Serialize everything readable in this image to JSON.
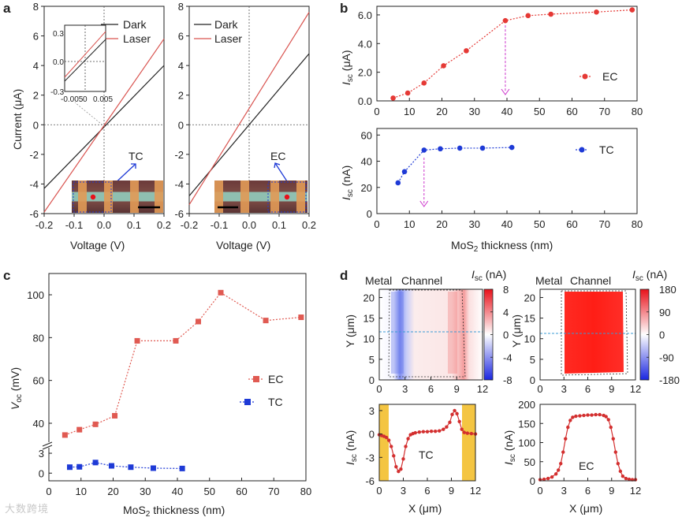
{
  "chart_data": [
    {
      "panel": "a",
      "type": "line",
      "xlim": [
        -0.2,
        0.2
      ],
      "ylim": [
        -6,
        8
      ],
      "xticks": [
        -0.2,
        -0.1,
        0.0,
        0.1,
        0.2
      ],
      "yticks": [
        -6,
        -4,
        -2,
        0,
        2,
        4,
        6,
        8
      ],
      "xlabel": "Voltage (V)",
      "ylabel": "Current (μA)",
      "series": [
        {
          "name": "Dark",
          "color": "#222222",
          "x": [
            -0.2,
            0.2
          ],
          "y": [
            -4.3,
            4.0
          ]
        },
        {
          "name": "Laser",
          "color": "#d9534f",
          "x": [
            -0.2,
            0.2
          ],
          "y": [
            -5.9,
            5.8
          ]
        }
      ],
      "annotation": "TC",
      "inset": {
        "xlim": [
          -0.005,
          0.005
        ],
        "ylim": [
          -0.3,
          0.3
        ],
        "xticks": [
          "-0.005",
          "0",
          "0.005"
        ],
        "yticks": [
          "0.3",
          "0.0",
          "-0.3"
        ]
      }
    },
    {
      "panel": "a-right",
      "type": "line",
      "xlim": [
        -0.2,
        0.2
      ],
      "ylim": [
        -6,
        8
      ],
      "xticks": [
        -0.2,
        -0.1,
        0.0,
        0.1,
        0.2
      ],
      "yticks": [
        -6,
        -4,
        -2,
        0,
        2,
        4,
        6,
        8
      ],
      "xlabel": "Voltage (V)",
      "series": [
        {
          "name": "Dark",
          "color": "#222222",
          "x": [
            -0.2,
            0.2
          ],
          "y": [
            -4.8,
            4.8
          ]
        },
        {
          "name": "Laser",
          "color": "#d9534f",
          "x": [
            -0.2,
            0.2
          ],
          "y": [
            -5.4,
            7.6
          ]
        }
      ],
      "annotation": "EC"
    },
    {
      "panel": "b-top",
      "type": "line",
      "xlim": [
        0,
        80
      ],
      "ylim": [
        0,
        6.6
      ],
      "yticks": [
        0.0,
        2.0,
        4.0,
        6.0
      ],
      "ylabel": "Isc (μA)",
      "series": [
        {
          "name": "EC",
          "color": "#e53935",
          "x": [
            5,
            9.5,
            14.5,
            20.5,
            27.5,
            39.5,
            46.5,
            53.5,
            67.5,
            78.5
          ],
          "y": [
            0.2,
            0.55,
            1.25,
            2.45,
            3.5,
            5.6,
            5.95,
            6.05,
            6.2,
            6.35
          ]
        }
      ],
      "marker_x": 39.5
    },
    {
      "panel": "b-bottom",
      "type": "line",
      "xlim": [
        0,
        80
      ],
      "ylim": [
        0,
        65
      ],
      "xticks": [
        0,
        10,
        20,
        30,
        40,
        50,
        60,
        70,
        80
      ],
      "yticks": [
        0,
        20,
        40,
        60
      ],
      "xlabel": "MoS2 thickness (nm)",
      "ylabel": "Isc (nA)",
      "series": [
        {
          "name": "TC",
          "color": "#1e3ad6",
          "x": [
            6.5,
            8.5,
            14.5,
            19.5,
            25.5,
            32.5,
            41.5
          ],
          "y": [
            23.5,
            32,
            48.5,
            49.5,
            50,
            50,
            50.5
          ]
        }
      ],
      "marker_x": 14.5
    },
    {
      "panel": "c",
      "type": "line",
      "xlim": [
        0,
        80
      ],
      "xticks": [
        0,
        10,
        20,
        30,
        40,
        50,
        60,
        70,
        80
      ],
      "yticks_upper": [
        40,
        60,
        80,
        100
      ],
      "yticks_lower": [
        0,
        3
      ],
      "ylim_upper": [
        33,
        107
      ],
      "ylim_lower": [
        -0.8,
        3.6
      ],
      "xlabel": "MoS2 thickness (nm)",
      "ylabel": "Voc (mV)",
      "series": [
        {
          "name": "EC",
          "color": "#e05a52",
          "x": [
            5,
            9.5,
            14.5,
            20.5,
            27.5,
            39.5,
            46.5,
            53.5,
            67.5,
            78.5
          ],
          "y": [
            34.5,
            37,
            39.5,
            43.5,
            78.5,
            78.5,
            87.5,
            101,
            88,
            89.5
          ]
        },
        {
          "name": "TC",
          "color": "#1e3ad6",
          "x": [
            6.5,
            9.5,
            14.5,
            19.5,
            25.5,
            32.5,
            41.5
          ],
          "y": [
            0.9,
            0.95,
            1.6,
            1.1,
            0.9,
            0.75,
            0.7
          ]
        }
      ]
    },
    {
      "panel": "d-map-left",
      "type": "heatmap",
      "xlim": [
        0,
        12
      ],
      "ylim": [
        0,
        22
      ],
      "xticks": [
        0,
        3,
        6,
        9,
        12
      ],
      "yticks": [
        0,
        5,
        10,
        15,
        20
      ],
      "ylabel": "Y (μm)",
      "colorbar": {
        "title": "Isc (nA)",
        "ticks": [
          8,
          4,
          0,
          -4,
          -8
        ],
        "min": -8,
        "max": 8
      }
    },
    {
      "panel": "d-map-right",
      "type": "heatmap",
      "xlim": [
        0,
        12
      ],
      "ylim": [
        0,
        22
      ],
      "xticks": [
        0,
        3,
        6,
        9,
        12
      ],
      "yticks": [
        0,
        5,
        10,
        15,
        20
      ],
      "ylabel": "Y (μm)",
      "colorbar": {
        "title": "Isc (nA)",
        "ticks": [
          180,
          90,
          0,
          -90,
          -180
        ],
        "min": -180,
        "max": 180
      }
    },
    {
      "panel": "d-profile-left",
      "type": "line",
      "xlim": [
        0,
        12
      ],
      "ylim": [
        -6,
        3.8
      ],
      "xticks": [
        0,
        3,
        6,
        9,
        12
      ],
      "yticks": [
        -6,
        -3,
        0,
        3
      ],
      "xlabel": "X (μm)",
      "ylabel": "Isc (nA)",
      "series": [
        {
          "name": "TC",
          "color": "#d32f2f",
          "x": [
            0,
            0.3,
            0.6,
            0.9,
            1.2,
            1.5,
            1.8,
            2.1,
            2.4,
            2.7,
            3.0,
            3.3,
            3.6,
            3.9,
            4.2,
            4.5,
            5.0,
            5.5,
            6.0,
            6.5,
            7.0,
            7.5,
            8.0,
            8.4,
            8.8,
            9.1,
            9.4,
            9.7,
            10.0,
            10.3,
            10.6,
            11.0,
            11.5,
            12.0
          ],
          "y": [
            -0.1,
            -0.2,
            -0.3,
            -0.45,
            -0.8,
            -1.6,
            -2.8,
            -4.2,
            -4.8,
            -4.5,
            -3.2,
            -1.6,
            -0.6,
            -0.1,
            0.05,
            0.15,
            0.25,
            0.3,
            0.3,
            0.35,
            0.35,
            0.4,
            0.6,
            0.9,
            1.5,
            2.5,
            3.0,
            2.6,
            1.6,
            0.6,
            0.2,
            0.1,
            0.05,
            0.0
          ]
        }
      ]
    },
    {
      "panel": "d-profile-right",
      "type": "line",
      "xlim": [
        0,
        12
      ],
      "ylim": [
        0,
        200
      ],
      "xticks": [
        0,
        3,
        6,
        9,
        12
      ],
      "yticks": [
        0,
        50,
        100,
        150,
        200
      ],
      "xlabel": "X (μm)",
      "ylabel": "Isc (nA)",
      "series": [
        {
          "name": "EC",
          "color": "#d32f2f",
          "x": [
            0,
            0.5,
            1.0,
            1.5,
            2.0,
            2.3,
            2.6,
            2.9,
            3.2,
            3.5,
            3.8,
            4.1,
            4.5,
            5.0,
            5.5,
            6.0,
            6.5,
            7.0,
            7.5,
            8.0,
            8.3,
            8.6,
            8.9,
            9.2,
            9.5,
            9.8,
            10.1,
            10.4,
            10.8,
            11.2,
            11.6,
            12.0
          ],
          "y": [
            3,
            4,
            6,
            10,
            18,
            28,
            45,
            75,
            110,
            140,
            158,
            166,
            169,
            170,
            171,
            172,
            172,
            173,
            173,
            171,
            168,
            160,
            140,
            110,
            75,
            45,
            25,
            12,
            6,
            4,
            3,
            3
          ]
        }
      ]
    }
  ],
  "labels": {
    "panel_a": "a",
    "panel_b": "b",
    "panel_c": "c",
    "panel_d": "d",
    "legend_dark": "Dark",
    "legend_laser": "Laser",
    "xlabel_voltage": "Voltage (V)",
    "ylabel_current": "Current (μA)",
    "tc": "TC",
    "ec": "EC",
    "isc_symbol": "I",
    "isc_sub": "sc",
    "unit_uA": " (μA)",
    "unit_nA": " (nA)",
    "voc_symbol": "V",
    "voc_sub": "oc",
    "unit_mV": " (mV)",
    "mos2_main": "MoS",
    "mos2_sub": "2",
    "mos2_rest": " thickness (nm)",
    "metal": "Metal",
    "channel": "Channel",
    "y_um": "Y (μm)",
    "x_um": "X (μm)",
    "watermark": "大数跨境"
  },
  "colors": {
    "red": "#e53935",
    "blue": "#1e3ad6",
    "magenta": "#cc33cc",
    "gold": "#f4c542"
  }
}
